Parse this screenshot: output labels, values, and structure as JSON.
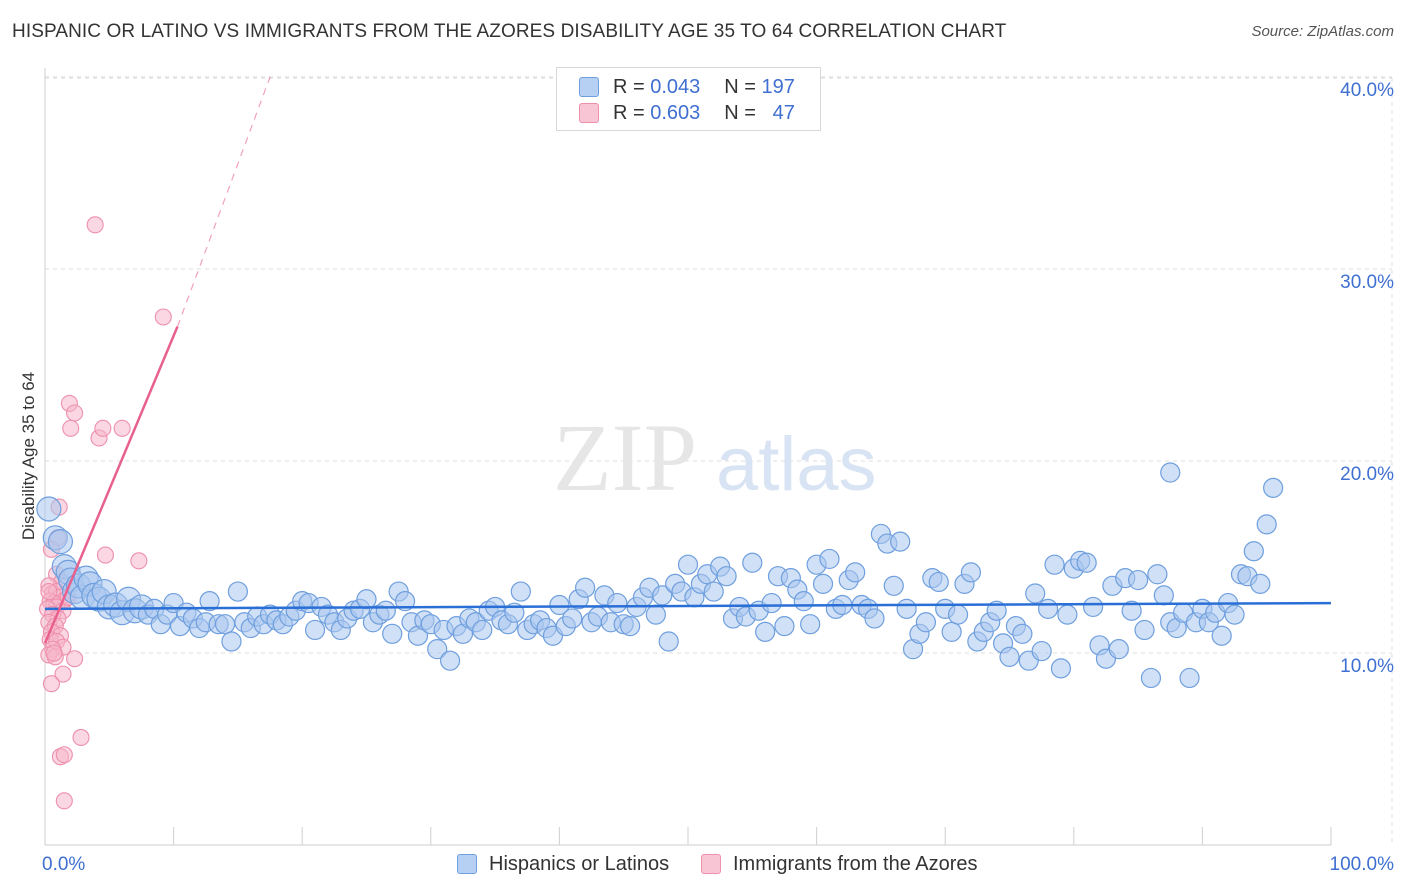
{
  "header": {
    "title": "HISPANIC OR LATINO VS IMMIGRANTS FROM THE AZORES DISABILITY AGE 35 TO 64 CORRELATION CHART",
    "source": "Source: ZipAtlas.com"
  },
  "legend": {
    "rows": [
      {
        "r_label": "R =",
        "r_value": "0.043",
        "n_label": "N =",
        "n_value": "197"
      },
      {
        "r_label": "R =",
        "r_value": "0.603",
        "n_label": "N =",
        "n_value": "47"
      }
    ]
  },
  "bottom_legend": {
    "items": [
      "Hispanics or Latinos",
      "Immigrants from the Azores"
    ]
  },
  "watermark": {
    "zip": "ZIP",
    "atlas": "atlas"
  },
  "colors": {
    "blue_fill": "#a9c7ef",
    "blue_stroke": "#6f9fde",
    "blue_line": "#2a6fd6",
    "pink_fill": "#f5b6ca",
    "pink_stroke": "#ee8fac",
    "pink_line": "#e8608e",
    "axis_text": "#3f6fd1",
    "grid": "#dddddd"
  },
  "chart_data": {
    "type": "scatter",
    "title": "HISPANIC OR LATINO VS IMMIGRANTS FROM THE AZORES DISABILITY AGE 35 TO 64 CORRELATION CHART",
    "xlabel": "",
    "ylabel": "Disability Age 35 to 64",
    "xlim": [
      0,
      100
    ],
    "ylim": [
      0,
      42
    ],
    "x_tick_labels": [
      "0.0%",
      "100.0%"
    ],
    "y_ticks": [
      10,
      20,
      30,
      40
    ],
    "y_tick_labels": [
      "10.0%",
      "20.0%",
      "30.0%",
      "40.0%"
    ],
    "grid": true,
    "legend_position": "top-center",
    "series": [
      {
        "name": "Hispanics or Latinos",
        "R": 0.043,
        "N": 197,
        "trend": {
          "x": [
            0,
            100
          ],
          "y": [
            12.3,
            12.6
          ]
        },
        "points": [
          [
            0.3,
            17.5
          ],
          [
            0.8,
            16.0
          ],
          [
            1.2,
            15.8
          ],
          [
            1.5,
            14.5
          ],
          [
            1.8,
            14.2
          ],
          [
            2.0,
            13.8
          ],
          [
            2.3,
            13.2
          ],
          [
            2.6,
            13.5
          ],
          [
            2.9,
            12.9
          ],
          [
            3.2,
            13.9
          ],
          [
            3.5,
            13.6
          ],
          [
            3.8,
            13.0
          ],
          [
            4.2,
            12.8
          ],
          [
            4.6,
            13.2
          ],
          [
            5.0,
            12.4
          ],
          [
            5.5,
            12.5
          ],
          [
            6.0,
            12.1
          ],
          [
            6.5,
            12.8
          ],
          [
            7.0,
            12.2
          ],
          [
            7.5,
            12.4
          ],
          [
            8.0,
            12.0
          ],
          [
            8.5,
            12.3
          ],
          [
            9.0,
            11.5
          ],
          [
            9.5,
            12.0
          ],
          [
            10.0,
            12.6
          ],
          [
            10.5,
            11.4
          ],
          [
            11.0,
            12.1
          ],
          [
            11.5,
            11.8
          ],
          [
            12.0,
            11.3
          ],
          [
            12.5,
            11.6
          ],
          [
            12.8,
            12.7
          ],
          [
            13.5,
            11.5
          ],
          [
            14.0,
            11.5
          ],
          [
            14.5,
            10.6
          ],
          [
            15.0,
            13.2
          ],
          [
            15.5,
            11.6
          ],
          [
            16.0,
            11.3
          ],
          [
            16.5,
            11.9
          ],
          [
            17.0,
            11.5
          ],
          [
            17.5,
            12.0
          ],
          [
            18.0,
            11.7
          ],
          [
            18.5,
            11.5
          ],
          [
            19.0,
            11.9
          ],
          [
            19.5,
            12.2
          ],
          [
            20.0,
            12.7
          ],
          [
            20.5,
            12.6
          ],
          [
            21.0,
            11.2
          ],
          [
            21.5,
            12.4
          ],
          [
            22.0,
            12.0
          ],
          [
            22.5,
            11.6
          ],
          [
            23.0,
            11.2
          ],
          [
            23.5,
            11.8
          ],
          [
            24.0,
            12.2
          ],
          [
            24.5,
            12.3
          ],
          [
            25.0,
            12.8
          ],
          [
            25.5,
            11.6
          ],
          [
            26.0,
            12.0
          ],
          [
            26.5,
            12.2
          ],
          [
            27.0,
            11.0
          ],
          [
            27.5,
            13.2
          ],
          [
            28.0,
            12.7
          ],
          [
            28.5,
            11.6
          ],
          [
            29.0,
            10.9
          ],
          [
            29.5,
            11.7
          ],
          [
            30.0,
            11.5
          ],
          [
            30.5,
            10.2
          ],
          [
            31.0,
            11.2
          ],
          [
            31.5,
            9.6
          ],
          [
            32.0,
            11.4
          ],
          [
            32.5,
            11.0
          ],
          [
            33.0,
            11.8
          ],
          [
            33.5,
            11.6
          ],
          [
            34.0,
            11.2
          ],
          [
            34.5,
            12.2
          ],
          [
            35.0,
            12.4
          ],
          [
            35.5,
            11.7
          ],
          [
            36.0,
            11.5
          ],
          [
            36.5,
            12.1
          ],
          [
            37.0,
            13.2
          ],
          [
            37.5,
            11.2
          ],
          [
            38.0,
            11.5
          ],
          [
            38.5,
            11.7
          ],
          [
            39.0,
            11.3
          ],
          [
            39.5,
            10.9
          ],
          [
            40.0,
            12.5
          ],
          [
            40.5,
            11.4
          ],
          [
            41.0,
            11.8
          ],
          [
            41.5,
            12.8
          ],
          [
            42.0,
            13.4
          ],
          [
            42.5,
            11.6
          ],
          [
            43.0,
            11.9
          ],
          [
            43.5,
            13.0
          ],
          [
            44.0,
            11.6
          ],
          [
            44.5,
            12.6
          ],
          [
            45.0,
            11.5
          ],
          [
            45.5,
            11.4
          ],
          [
            46.0,
            12.4
          ],
          [
            46.5,
            12.9
          ],
          [
            47.0,
            13.4
          ],
          [
            47.5,
            12.0
          ],
          [
            48.0,
            13.0
          ],
          [
            48.5,
            10.6
          ],
          [
            49.0,
            13.6
          ],
          [
            49.5,
            13.2
          ],
          [
            50.0,
            14.6
          ],
          [
            50.5,
            12.9
          ],
          [
            51.0,
            13.6
          ],
          [
            51.5,
            14.1
          ],
          [
            52.0,
            13.2
          ],
          [
            52.5,
            14.5
          ],
          [
            53.0,
            14.0
          ],
          [
            53.5,
            11.8
          ],
          [
            54.0,
            12.4
          ],
          [
            54.5,
            11.9
          ],
          [
            55.0,
            14.7
          ],
          [
            55.5,
            12.2
          ],
          [
            56.0,
            11.1
          ],
          [
            56.5,
            12.6
          ],
          [
            57.0,
            14.0
          ],
          [
            57.5,
            11.4
          ],
          [
            58.0,
            13.9
          ],
          [
            58.5,
            13.3
          ],
          [
            59.0,
            12.7
          ],
          [
            59.5,
            11.5
          ],
          [
            60.0,
            14.6
          ],
          [
            60.5,
            13.6
          ],
          [
            61.0,
            14.9
          ],
          [
            61.5,
            12.3
          ],
          [
            62.0,
            12.5
          ],
          [
            62.5,
            13.8
          ],
          [
            63.0,
            14.2
          ],
          [
            63.5,
            12.5
          ],
          [
            64.0,
            12.3
          ],
          [
            64.5,
            11.8
          ],
          [
            65.0,
            16.2
          ],
          [
            65.5,
            15.7
          ],
          [
            66.0,
            13.5
          ],
          [
            66.5,
            15.8
          ],
          [
            67.0,
            12.3
          ],
          [
            67.5,
            10.2
          ],
          [
            68.0,
            11.0
          ],
          [
            68.5,
            11.6
          ],
          [
            69.0,
            13.9
          ],
          [
            69.5,
            13.7
          ],
          [
            70.0,
            12.3
          ],
          [
            70.5,
            11.1
          ],
          [
            71.0,
            12.0
          ],
          [
            71.5,
            13.6
          ],
          [
            72.0,
            14.2
          ],
          [
            72.5,
            10.6
          ],
          [
            73.0,
            11.1
          ],
          [
            73.5,
            11.6
          ],
          [
            74.0,
            12.2
          ],
          [
            74.5,
            10.5
          ],
          [
            75.0,
            9.8
          ],
          [
            75.5,
            11.4
          ],
          [
            76.0,
            11.0
          ],
          [
            76.5,
            9.6
          ],
          [
            77.0,
            13.1
          ],
          [
            77.5,
            10.1
          ],
          [
            78.0,
            12.3
          ],
          [
            78.5,
            14.6
          ],
          [
            79.0,
            9.2
          ],
          [
            79.5,
            12.0
          ],
          [
            80.0,
            14.4
          ],
          [
            80.5,
            14.8
          ],
          [
            81.0,
            14.7
          ],
          [
            81.5,
            12.4
          ],
          [
            82.0,
            10.4
          ],
          [
            82.5,
            9.7
          ],
          [
            83.0,
            13.5
          ],
          [
            83.5,
            10.2
          ],
          [
            84.0,
            13.9
          ],
          [
            84.5,
            12.2
          ],
          [
            85.0,
            13.8
          ],
          [
            85.5,
            11.2
          ],
          [
            86.0,
            8.7
          ],
          [
            86.5,
            14.1
          ],
          [
            87.0,
            13.0
          ],
          [
            87.5,
            11.6
          ],
          [
            88.0,
            11.3
          ],
          [
            88.5,
            12.1
          ],
          [
            89.0,
            8.7
          ],
          [
            89.5,
            11.6
          ],
          [
            90.0,
            12.3
          ],
          [
            90.5,
            11.6
          ],
          [
            91.0,
            12.1
          ],
          [
            91.5,
            10.9
          ],
          [
            92.0,
            12.6
          ],
          [
            92.5,
            12.0
          ],
          [
            93.0,
            14.1
          ],
          [
            93.5,
            14.0
          ],
          [
            94.0,
            15.3
          ],
          [
            94.5,
            13.6
          ],
          [
            95.0,
            16.7
          ],
          [
            95.5,
            18.6
          ],
          [
            87.5,
            19.4
          ]
        ]
      },
      {
        "name": "Immigrants from the Azores",
        "R": 0.603,
        "N": 47,
        "trend": {
          "x": [
            0.0,
            10.3
          ],
          "y": [
            10.5,
            27.0
          ]
        },
        "trend_dashed": {
          "x": [
            10.3,
            17.5
          ],
          "y": [
            27.0,
            40.0
          ]
        },
        "points": [
          [
            3.9,
            32.3
          ],
          [
            9.2,
            27.5
          ],
          [
            1.9,
            23.0
          ],
          [
            2.3,
            22.5
          ],
          [
            4.2,
            21.2
          ],
          [
            4.5,
            21.7
          ],
          [
            6.0,
            21.7
          ],
          [
            2.0,
            21.7
          ],
          [
            1.1,
            17.6
          ],
          [
            1.0,
            16.0
          ],
          [
            0.5,
            15.4
          ],
          [
            4.7,
            15.1
          ],
          [
            7.3,
            14.8
          ],
          [
            0.9,
            14.1
          ],
          [
            1.3,
            13.7
          ],
          [
            0.3,
            13.5
          ],
          [
            0.6,
            13.1
          ],
          [
            0.9,
            13.2
          ],
          [
            1.2,
            12.9
          ],
          [
            1.6,
            12.8
          ],
          [
            0.4,
            12.7
          ],
          [
            0.7,
            12.6
          ],
          [
            0.9,
            12.4
          ],
          [
            0.2,
            12.3
          ],
          [
            1.4,
            12.2
          ],
          [
            0.6,
            12.0
          ],
          [
            1.0,
            11.8
          ],
          [
            0.3,
            11.6
          ],
          [
            0.8,
            11.4
          ],
          [
            0.5,
            11.1
          ],
          [
            1.2,
            10.9
          ],
          [
            0.4,
            10.7
          ],
          [
            0.9,
            10.6
          ],
          [
            1.4,
            10.3
          ],
          [
            0.6,
            10.2
          ],
          [
            0.3,
            9.9
          ],
          [
            0.8,
            9.8
          ],
          [
            2.3,
            9.7
          ],
          [
            1.4,
            8.9
          ],
          [
            0.5,
            8.4
          ],
          [
            2.8,
            5.6
          ],
          [
            1.2,
            4.6
          ],
          [
            1.5,
            4.7
          ],
          [
            1.5,
            2.3
          ],
          [
            0.3,
            13.2
          ],
          [
            1.8,
            12.9
          ],
          [
            0.7,
            10.0
          ]
        ]
      }
    ]
  }
}
